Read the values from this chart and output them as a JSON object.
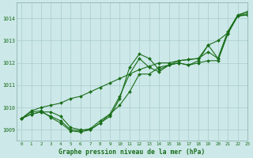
{
  "background_color": "#cce8e8",
  "grid_color": "#aacccc",
  "line_color": "#1a6e1a",
  "marker_color": "#1a6e1a",
  "title": "Graphe pression niveau de la mer (hPa)",
  "xlim": [
    -0.5,
    23
  ],
  "ylim": [
    1008.5,
    1014.7
  ],
  "yticks": [
    1009,
    1010,
    1011,
    1012,
    1013,
    1014
  ],
  "xticks": [
    0,
    1,
    2,
    3,
    4,
    5,
    6,
    7,
    8,
    9,
    10,
    11,
    12,
    13,
    14,
    15,
    16,
    17,
    18,
    19,
    20,
    21,
    22,
    23
  ],
  "series": [
    [
      1009.5,
      1009.7,
      1009.8,
      1009.8,
      1009.6,
      1009.1,
      1009.0,
      1009.0,
      1009.3,
      1009.7,
      1010.1,
      1010.7,
      1011.5,
      1011.5,
      1011.8,
      1011.9,
      1012.0,
      1011.9,
      1012.0,
      1012.1,
      1012.1,
      1013.3,
      1014.1,
      1014.2
    ],
    [
      1009.5,
      1009.7,
      1009.8,
      1009.6,
      1009.4,
      1009.0,
      1008.95,
      1009.05,
      1009.4,
      1009.7,
      1010.5,
      1011.5,
      1012.2,
      1011.8,
      1011.6,
      1011.9,
      1012.0,
      1011.9,
      1012.1,
      1012.8,
      1012.2,
      1013.4,
      1014.1,
      1014.15
    ],
    [
      1009.5,
      1009.8,
      1009.85,
      1009.55,
      1009.3,
      1008.95,
      1008.9,
      1009.0,
      1009.3,
      1009.6,
      1010.4,
      1011.8,
      1012.4,
      1012.2,
      1011.7,
      1011.9,
      1012.1,
      1012.15,
      1012.2,
      1012.5,
      1012.2,
      1013.4,
      1014.15,
      1014.3
    ],
    [
      1009.5,
      1009.85,
      1010.0,
      1010.1,
      1010.2,
      1010.4,
      1010.5,
      1010.7,
      1010.9,
      1011.1,
      1011.3,
      1011.5,
      1011.7,
      1011.85,
      1012.0,
      1012.0,
      1012.1,
      1012.15,
      1012.2,
      1012.8,
      1013.0,
      1013.35,
      1014.1,
      1014.3
    ]
  ]
}
